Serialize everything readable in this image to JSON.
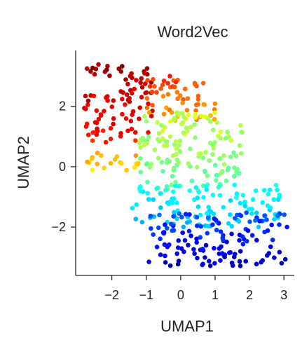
{
  "chart_data": {
    "type": "scatter",
    "title": "Word2Vec",
    "xlabel": "UMAP1",
    "ylabel": "UMAP2",
    "xlim": [
      -3.05,
      3.3
    ],
    "ylim": [
      -3.6,
      3.85
    ],
    "xticks": [
      -2,
      -1,
      0,
      1,
      2,
      3
    ],
    "yticks": [
      -2,
      0,
      2
    ],
    "x_tick_labels": [
      "−2",
      "−1",
      "0",
      "1",
      "2",
      "3"
    ],
    "y_tick_labels": [
      "−2",
      "0",
      "2"
    ],
    "grid": false,
    "colormap": "jet",
    "colormap_stops": [
      "#00007f",
      "#0000ff",
      "#007fff",
      "#00ffff",
      "#7fff7f",
      "#ffff00",
      "#ff7f00",
      "#ff0000",
      "#7f0000"
    ],
    "point_count": 560,
    "clusters": [
      {
        "region": "upper-left",
        "x_range": [
          -2.8,
          -0.8
        ],
        "y_range": [
          0.8,
          3.4
        ],
        "color_value_range": [
          0.82,
          1.0
        ]
      },
      {
        "region": "upper-middle",
        "x_range": [
          -1.0,
          1.0
        ],
        "y_range": [
          1.5,
          3.0
        ],
        "color_value_range": [
          0.68,
          0.86
        ]
      },
      {
        "region": "left-middle",
        "x_range": [
          -2.8,
          -1.2
        ],
        "y_range": [
          -0.2,
          0.5
        ],
        "color_value_range": [
          0.62,
          0.75
        ]
      },
      {
        "region": "center",
        "x_range": [
          -1.2,
          1.8
        ],
        "y_range": [
          -0.8,
          1.8
        ],
        "color_value_range": [
          0.42,
          0.62
        ]
      },
      {
        "region": "lower-center",
        "x_range": [
          -1.5,
          2.9
        ],
        "y_range": [
          -2.0,
          -0.6
        ],
        "color_value_range": [
          0.28,
          0.42
        ]
      },
      {
        "region": "lower-right",
        "x_range": [
          -1.0,
          3.1
        ],
        "y_range": [
          -3.3,
          -1.5
        ],
        "color_value_range": [
          0.02,
          0.25
        ]
      }
    ]
  }
}
